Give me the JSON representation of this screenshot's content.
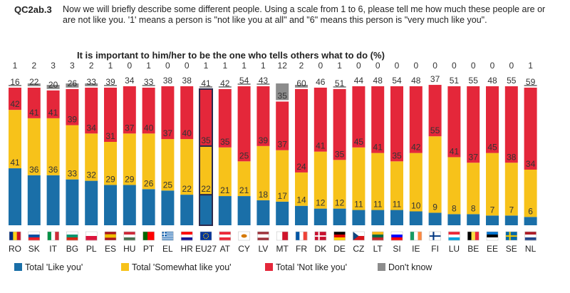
{
  "header": {
    "question_id": "QC2ab.3",
    "question_text": "Now we will briefly describe some different people. Using a scale from 1 to 6, please tell me how much these people are or are not like you. '1' means a person is \"not like you at all\" and \"6\" means this person is \"very much like you\".",
    "subtitle": "It is important to him/her to be the one who tells others what to do  (%)"
  },
  "colors": {
    "like": "#1a6fa8",
    "somewhat": "#f7c21a",
    "not_like": "#e4273a",
    "dont_know": "#8c8c8c",
    "highlight_border": "#2b2a4c"
  },
  "chart_data": {
    "type": "bar",
    "stacked": true,
    "categories": [
      "RO",
      "SK",
      "IT",
      "BG",
      "PL",
      "ES",
      "HU",
      "PT",
      "EL",
      "HR",
      "EU27",
      "AT",
      "CY",
      "LV",
      "MT",
      "FR",
      "DK",
      "DE",
      "CZ",
      "LT",
      "SI",
      "IE",
      "FI",
      "LU",
      "BE",
      "EE",
      "SE",
      "NL"
    ],
    "highlight": "EU27",
    "series": [
      {
        "name": "Total 'Like you'",
        "color_key": "like",
        "values": [
          41,
          36,
          36,
          33,
          32,
          29,
          29,
          26,
          25,
          22,
          22,
          21,
          21,
          18,
          17,
          14,
          12,
          12,
          11,
          11,
          11,
          10,
          9,
          8,
          8,
          7,
          7,
          6
        ]
      },
      {
        "name": "Total 'Somewhat like you'",
        "color_key": "somewhat",
        "values": [
          42,
          41,
          41,
          39,
          34,
          31,
          37,
          40,
          37,
          40,
          35,
          35,
          25,
          39,
          37,
          24,
          41,
          35,
          45,
          41,
          35,
          42,
          55,
          41,
          37,
          45,
          38,
          34
        ]
      },
      {
        "name": "Total 'Not like you'",
        "color_key": "not_like",
        "values": [
          16,
          22,
          20,
          26,
          33,
          39,
          34,
          33,
          38,
          38,
          41,
          42,
          54,
          43,
          35,
          60,
          46,
          51,
          44,
          48,
          54,
          48,
          37,
          51,
          55,
          48,
          55,
          59
        ]
      },
      {
        "name": "Don't know",
        "color_key": "dont_know",
        "values": [
          1,
          2,
          3,
          3,
          2,
          1,
          0,
          1,
          0,
          0,
          1,
          1,
          1,
          1,
          12,
          2,
          0,
          1,
          0,
          0,
          0,
          0,
          0,
          0,
          0,
          0,
          0,
          1
        ]
      }
    ],
    "ylim": [
      0,
      100
    ]
  },
  "legend": [
    {
      "label": "Total 'Like you'",
      "color_key": "like"
    },
    {
      "label": "Total 'Somewhat like you'",
      "color_key": "somewhat"
    },
    {
      "label": "Total 'Not like you'",
      "color_key": "not_like"
    },
    {
      "label": "Don't know",
      "color_key": "dont_know"
    }
  ]
}
